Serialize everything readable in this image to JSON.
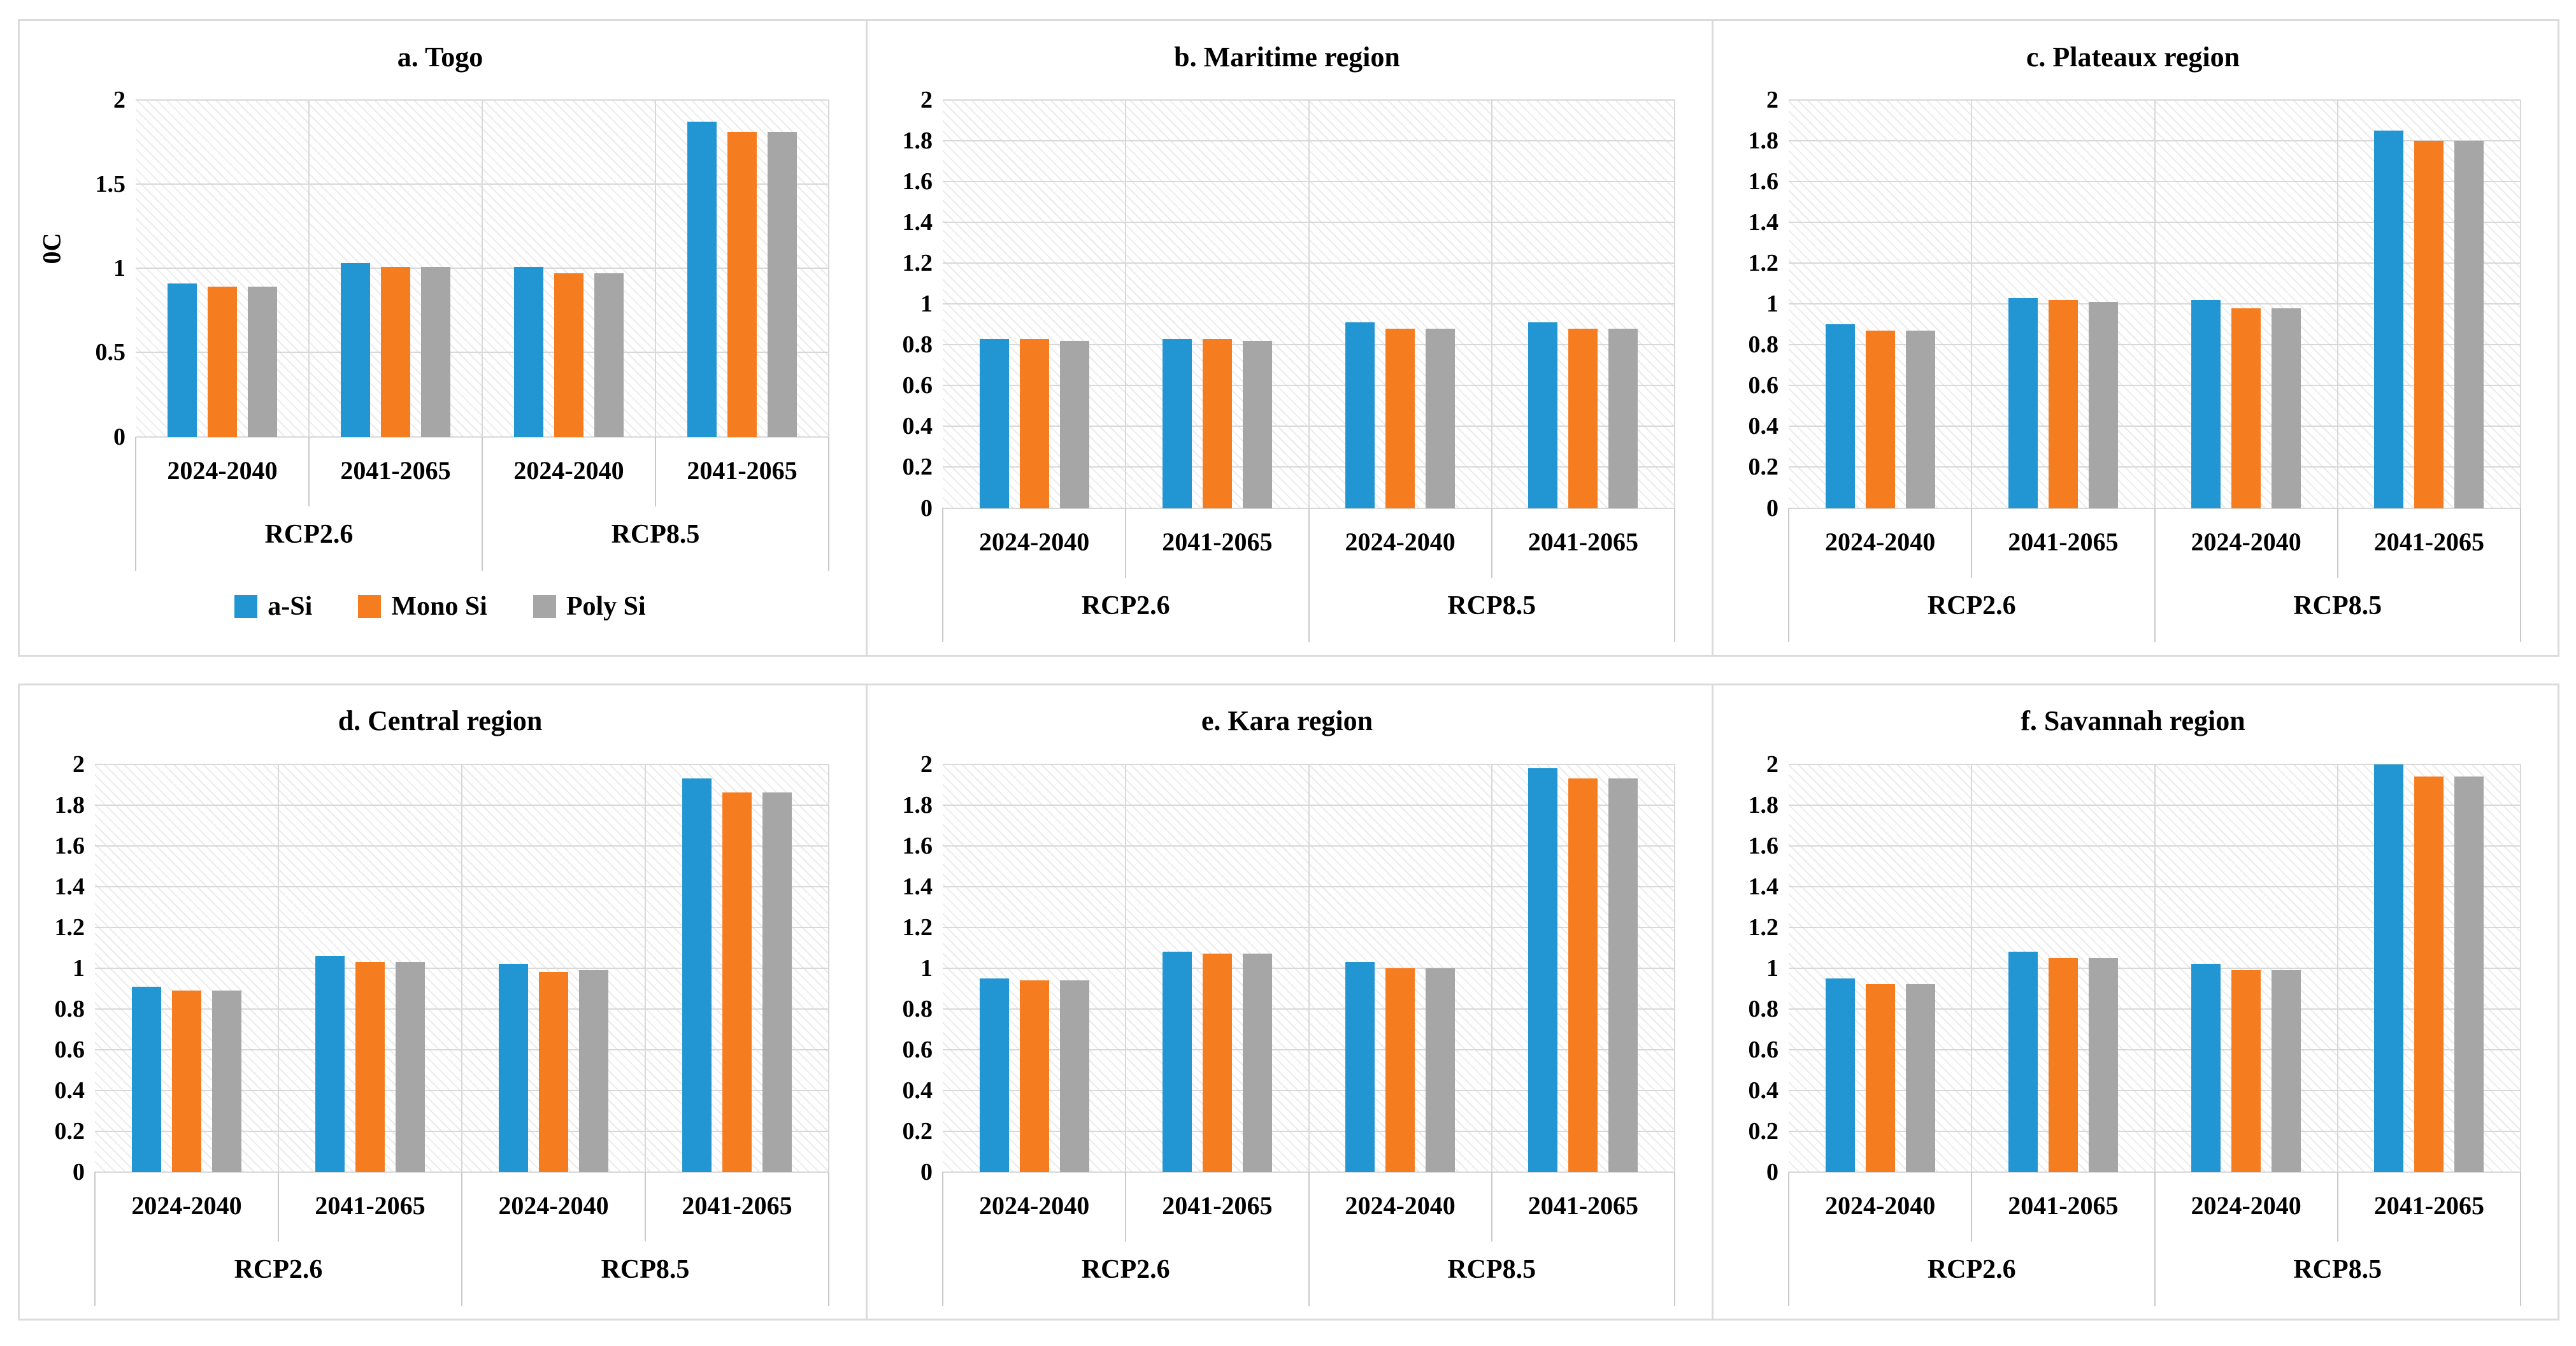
{
  "figure": {
    "description": "Six-panel bar chart figure comparing PV technologies under climate scenarios for Togo and its regions",
    "panel_count": 6,
    "accent_colors": {
      "a_si_blue": "#2196D2",
      "mono_si_orange": "#F67C20",
      "poly_si_gray": "#A6A6A6"
    }
  },
  "legend": {
    "items": [
      {
        "label": "a-Si",
        "color": "#2196D2"
      },
      {
        "label": "Mono Si",
        "color": "#F67C20"
      },
      {
        "label": "Poly Si",
        "color": "#A6A6A6"
      }
    ]
  },
  "chart_data": [
    {
      "type": "bar",
      "title": "a. Togo",
      "ylabel": "0C",
      "ylim": [
        0,
        2
      ],
      "ytick_step": 0.5,
      "grid": true,
      "legend_position": "bottom",
      "categories": [
        "RCP2.6 2024-2040",
        "RCP2.6 2041-2065",
        "RCP8.5 2024-2040",
        "RCP8.5 2041-2065"
      ],
      "x_axis": {
        "groups": [
          {
            "scenario": "RCP2.6",
            "periods": [
              "2024-2040",
              "2041-2065"
            ]
          },
          {
            "scenario": "RCP8.5",
            "periods": [
              "2024-2040",
              "2041-2065"
            ]
          }
        ]
      },
      "series": [
        {
          "name": "a-Si",
          "color": "#2196D2",
          "values": [
            0.91,
            1.03,
            1.01,
            1.87
          ]
        },
        {
          "name": "Mono Si",
          "color": "#F67C20",
          "values": [
            0.89,
            1.01,
            0.97,
            1.81
          ]
        },
        {
          "name": "Poly Si",
          "color": "#A6A6A6",
          "values": [
            0.89,
            1.01,
            0.97,
            1.81
          ]
        }
      ]
    },
    {
      "type": "bar",
      "title": "b. Maritime region",
      "ylabel": "",
      "ylim": [
        0,
        2
      ],
      "ytick_step": 0.2,
      "grid": true,
      "legend_position": "none",
      "categories": [
        "RCP2.6 2024-2040",
        "RCP2.6 2041-2065",
        "RCP8.5 2024-2040",
        "RCP8.5 2041-2065"
      ],
      "x_axis": {
        "groups": [
          {
            "scenario": "RCP2.6",
            "periods": [
              "2024-2040",
              "2041-2065"
            ]
          },
          {
            "scenario": "RCP8.5",
            "periods": [
              "2024-2040",
              "2041-2065"
            ]
          }
        ]
      },
      "series": [
        {
          "name": "a-Si",
          "color": "#2196D2",
          "values": [
            0.83,
            0.83,
            0.91,
            0.91
          ]
        },
        {
          "name": "Mono Si",
          "color": "#F67C20",
          "values": [
            0.83,
            0.83,
            0.88,
            0.88
          ]
        },
        {
          "name": "Poly Si",
          "color": "#A6A6A6",
          "values": [
            0.82,
            0.82,
            0.88,
            0.88
          ]
        }
      ]
    },
    {
      "type": "bar",
      "title": "c. Plateaux region",
      "ylabel": "",
      "ylim": [
        0,
        2
      ],
      "ytick_step": 0.2,
      "grid": true,
      "legend_position": "none",
      "categories": [
        "RCP2.6 2024-2040",
        "RCP2.6 2041-2065",
        "RCP8.5 2024-2040",
        "RCP8.5 2041-2065"
      ],
      "x_axis": {
        "groups": [
          {
            "scenario": "RCP2.6",
            "periods": [
              "2024-2040",
              "2041-2065"
            ]
          },
          {
            "scenario": "RCP8.5",
            "periods": [
              "2024-2040",
              "2041-2065"
            ]
          }
        ]
      },
      "series": [
        {
          "name": "a-Si",
          "color": "#2196D2",
          "values": [
            0.9,
            1.03,
            1.02,
            1.85
          ]
        },
        {
          "name": "Mono Si",
          "color": "#F67C20",
          "values": [
            0.87,
            1.02,
            0.98,
            1.8
          ]
        },
        {
          "name": "Poly Si",
          "color": "#A6A6A6",
          "values": [
            0.87,
            1.01,
            0.98,
            1.8
          ]
        }
      ]
    },
    {
      "type": "bar",
      "title": "d. Central region",
      "ylabel": "",
      "ylim": [
        0,
        2
      ],
      "ytick_step": 0.2,
      "grid": true,
      "legend_position": "none",
      "categories": [
        "RCP2.6 2024-2040",
        "RCP2.6 2041-2065",
        "RCP8.5 2024-2040",
        "RCP8.5 2041-2065"
      ],
      "x_axis": {
        "groups": [
          {
            "scenario": "RCP2.6",
            "periods": [
              "2024-2040",
              "2041-2065"
            ]
          },
          {
            "scenario": "RCP8.5",
            "periods": [
              "2024-2040",
              "2041-2065"
            ]
          }
        ]
      },
      "series": [
        {
          "name": "a-Si",
          "color": "#2196D2",
          "values": [
            0.91,
            1.06,
            1.02,
            1.93
          ]
        },
        {
          "name": "Mono Si",
          "color": "#F67C20",
          "values": [
            0.89,
            1.03,
            0.98,
            1.86
          ]
        },
        {
          "name": "Poly Si",
          "color": "#A6A6A6",
          "values": [
            0.89,
            1.03,
            0.99,
            1.86
          ]
        }
      ]
    },
    {
      "type": "bar",
      "title": "e. Kara region",
      "ylabel": "",
      "ylim": [
        0,
        2
      ],
      "ytick_step": 0.2,
      "grid": true,
      "legend_position": "none",
      "categories": [
        "RCP2.6 2024-2040",
        "RCP2.6 2041-2065",
        "RCP8.5 2024-2040",
        "RCP8.5 2041-2065"
      ],
      "x_axis": {
        "groups": [
          {
            "scenario": "RCP2.6",
            "periods": [
              "2024-2040",
              "2041-2065"
            ]
          },
          {
            "scenario": "RCP8.5",
            "periods": [
              "2024-2040",
              "2041-2065"
            ]
          }
        ]
      },
      "series": [
        {
          "name": "a-Si",
          "color": "#2196D2",
          "values": [
            0.95,
            1.08,
            1.03,
            1.98
          ]
        },
        {
          "name": "Mono Si",
          "color": "#F67C20",
          "values": [
            0.94,
            1.07,
            1.0,
            1.93
          ]
        },
        {
          "name": "Poly Si",
          "color": "#A6A6A6",
          "values": [
            0.94,
            1.07,
            1.0,
            1.93
          ]
        }
      ]
    },
    {
      "type": "bar",
      "title": "f. Savannah region",
      "ylabel": "",
      "ylim": [
        0,
        2
      ],
      "ytick_step": 0.2,
      "grid": true,
      "legend_position": "none",
      "categories": [
        "RCP2.6 2024-2040",
        "RCP2.6 2041-2065",
        "RCP8.5 2024-2040",
        "RCP8.5 2041-2065"
      ],
      "x_axis": {
        "groups": [
          {
            "scenario": "RCP2.6",
            "periods": [
              "2024-2040",
              "2041-2065"
            ]
          },
          {
            "scenario": "RCP8.5",
            "periods": [
              "2024-2040",
              "2041-2065"
            ]
          }
        ]
      },
      "series": [
        {
          "name": "a-Si",
          "color": "#2196D2",
          "values": [
            0.95,
            1.08,
            1.02,
            2.0
          ]
        },
        {
          "name": "Mono Si",
          "color": "#F67C20",
          "values": [
            0.92,
            1.05,
            0.99,
            1.94
          ]
        },
        {
          "name": "Poly Si",
          "color": "#A6A6A6",
          "values": [
            0.92,
            1.05,
            0.99,
            1.94
          ]
        }
      ]
    }
  ]
}
